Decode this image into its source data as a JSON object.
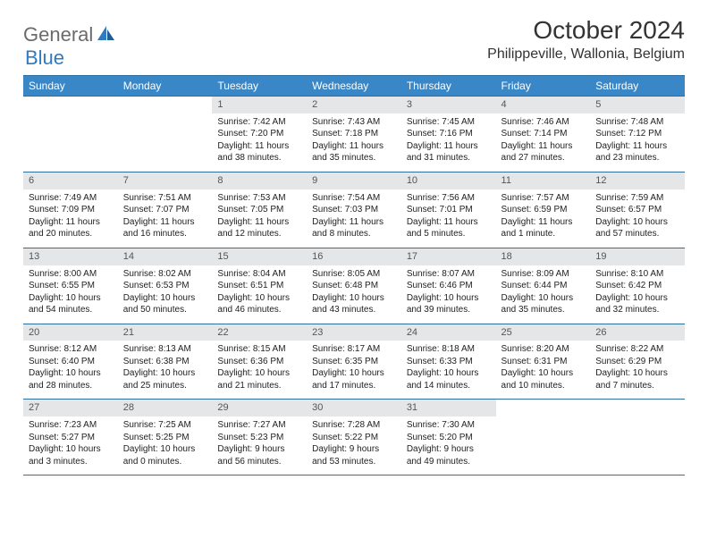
{
  "logo": {
    "text1": "General",
    "text2": "Blue"
  },
  "title": "October 2024",
  "location": "Philippeville, Wallonia, Belgium",
  "header_bg": "#3a87c8",
  "header_fg": "#ffffff",
  "daynum_bg": "#e4e6e8",
  "border_color": "#2f6fa0",
  "columns": [
    "Sunday",
    "Monday",
    "Tuesday",
    "Wednesday",
    "Thursday",
    "Friday",
    "Saturday"
  ],
  "weeks": [
    [
      null,
      null,
      {
        "n": "1",
        "sr": "Sunrise: 7:42 AM",
        "ss": "Sunset: 7:20 PM",
        "dl": "Daylight: 11 hours and 38 minutes."
      },
      {
        "n": "2",
        "sr": "Sunrise: 7:43 AM",
        "ss": "Sunset: 7:18 PM",
        "dl": "Daylight: 11 hours and 35 minutes."
      },
      {
        "n": "3",
        "sr": "Sunrise: 7:45 AM",
        "ss": "Sunset: 7:16 PM",
        "dl": "Daylight: 11 hours and 31 minutes."
      },
      {
        "n": "4",
        "sr": "Sunrise: 7:46 AM",
        "ss": "Sunset: 7:14 PM",
        "dl": "Daylight: 11 hours and 27 minutes."
      },
      {
        "n": "5",
        "sr": "Sunrise: 7:48 AM",
        "ss": "Sunset: 7:12 PM",
        "dl": "Daylight: 11 hours and 23 minutes."
      }
    ],
    [
      {
        "n": "6",
        "sr": "Sunrise: 7:49 AM",
        "ss": "Sunset: 7:09 PM",
        "dl": "Daylight: 11 hours and 20 minutes."
      },
      {
        "n": "7",
        "sr": "Sunrise: 7:51 AM",
        "ss": "Sunset: 7:07 PM",
        "dl": "Daylight: 11 hours and 16 minutes."
      },
      {
        "n": "8",
        "sr": "Sunrise: 7:53 AM",
        "ss": "Sunset: 7:05 PM",
        "dl": "Daylight: 11 hours and 12 minutes."
      },
      {
        "n": "9",
        "sr": "Sunrise: 7:54 AM",
        "ss": "Sunset: 7:03 PM",
        "dl": "Daylight: 11 hours and 8 minutes."
      },
      {
        "n": "10",
        "sr": "Sunrise: 7:56 AM",
        "ss": "Sunset: 7:01 PM",
        "dl": "Daylight: 11 hours and 5 minutes."
      },
      {
        "n": "11",
        "sr": "Sunrise: 7:57 AM",
        "ss": "Sunset: 6:59 PM",
        "dl": "Daylight: 11 hours and 1 minute."
      },
      {
        "n": "12",
        "sr": "Sunrise: 7:59 AM",
        "ss": "Sunset: 6:57 PM",
        "dl": "Daylight: 10 hours and 57 minutes."
      }
    ],
    [
      {
        "n": "13",
        "sr": "Sunrise: 8:00 AM",
        "ss": "Sunset: 6:55 PM",
        "dl": "Daylight: 10 hours and 54 minutes."
      },
      {
        "n": "14",
        "sr": "Sunrise: 8:02 AM",
        "ss": "Sunset: 6:53 PM",
        "dl": "Daylight: 10 hours and 50 minutes."
      },
      {
        "n": "15",
        "sr": "Sunrise: 8:04 AM",
        "ss": "Sunset: 6:51 PM",
        "dl": "Daylight: 10 hours and 46 minutes."
      },
      {
        "n": "16",
        "sr": "Sunrise: 8:05 AM",
        "ss": "Sunset: 6:48 PM",
        "dl": "Daylight: 10 hours and 43 minutes."
      },
      {
        "n": "17",
        "sr": "Sunrise: 8:07 AM",
        "ss": "Sunset: 6:46 PM",
        "dl": "Daylight: 10 hours and 39 minutes."
      },
      {
        "n": "18",
        "sr": "Sunrise: 8:09 AM",
        "ss": "Sunset: 6:44 PM",
        "dl": "Daylight: 10 hours and 35 minutes."
      },
      {
        "n": "19",
        "sr": "Sunrise: 8:10 AM",
        "ss": "Sunset: 6:42 PM",
        "dl": "Daylight: 10 hours and 32 minutes."
      }
    ],
    [
      {
        "n": "20",
        "sr": "Sunrise: 8:12 AM",
        "ss": "Sunset: 6:40 PM",
        "dl": "Daylight: 10 hours and 28 minutes."
      },
      {
        "n": "21",
        "sr": "Sunrise: 8:13 AM",
        "ss": "Sunset: 6:38 PM",
        "dl": "Daylight: 10 hours and 25 minutes."
      },
      {
        "n": "22",
        "sr": "Sunrise: 8:15 AM",
        "ss": "Sunset: 6:36 PM",
        "dl": "Daylight: 10 hours and 21 minutes."
      },
      {
        "n": "23",
        "sr": "Sunrise: 8:17 AM",
        "ss": "Sunset: 6:35 PM",
        "dl": "Daylight: 10 hours and 17 minutes."
      },
      {
        "n": "24",
        "sr": "Sunrise: 8:18 AM",
        "ss": "Sunset: 6:33 PM",
        "dl": "Daylight: 10 hours and 14 minutes."
      },
      {
        "n": "25",
        "sr": "Sunrise: 8:20 AM",
        "ss": "Sunset: 6:31 PM",
        "dl": "Daylight: 10 hours and 10 minutes."
      },
      {
        "n": "26",
        "sr": "Sunrise: 8:22 AM",
        "ss": "Sunset: 6:29 PM",
        "dl": "Daylight: 10 hours and 7 minutes."
      }
    ],
    [
      {
        "n": "27",
        "sr": "Sunrise: 7:23 AM",
        "ss": "Sunset: 5:27 PM",
        "dl": "Daylight: 10 hours and 3 minutes."
      },
      {
        "n": "28",
        "sr": "Sunrise: 7:25 AM",
        "ss": "Sunset: 5:25 PM",
        "dl": "Daylight: 10 hours and 0 minutes."
      },
      {
        "n": "29",
        "sr": "Sunrise: 7:27 AM",
        "ss": "Sunset: 5:23 PM",
        "dl": "Daylight: 9 hours and 56 minutes."
      },
      {
        "n": "30",
        "sr": "Sunrise: 7:28 AM",
        "ss": "Sunset: 5:22 PM",
        "dl": "Daylight: 9 hours and 53 minutes."
      },
      {
        "n": "31",
        "sr": "Sunrise: 7:30 AM",
        "ss": "Sunset: 5:20 PM",
        "dl": "Daylight: 9 hours and 49 minutes."
      },
      null,
      null
    ]
  ]
}
